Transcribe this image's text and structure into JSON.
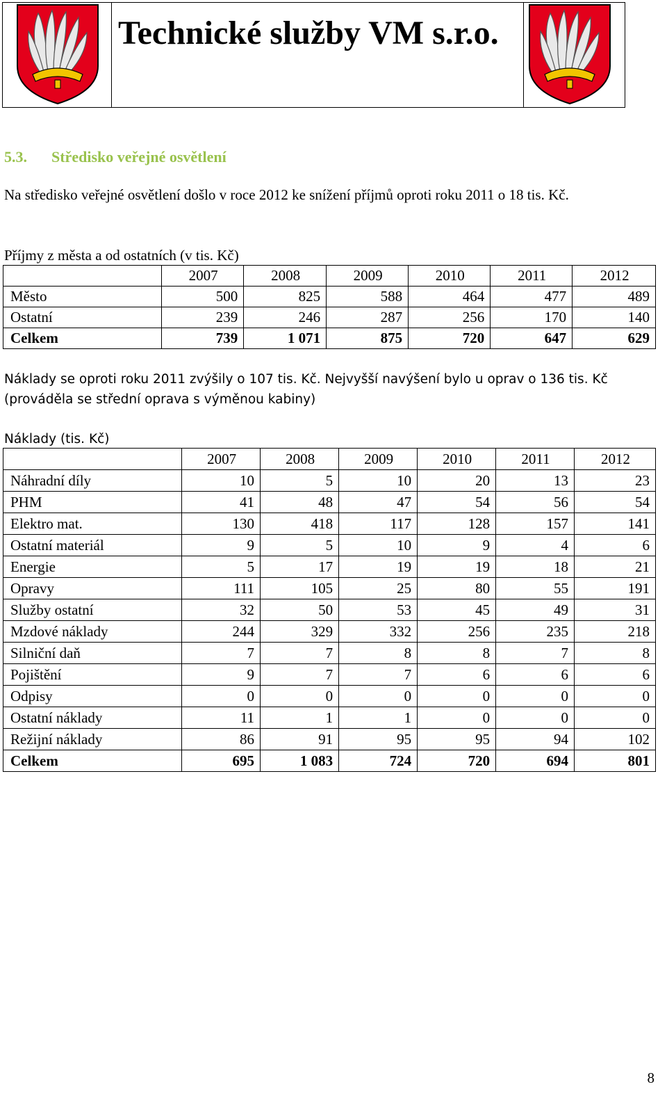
{
  "header": {
    "title": "Technické služby VM s.r.o."
  },
  "section": {
    "number": "5.3.",
    "title": "Středisko veřejné osvětlení"
  },
  "paragraphs": {
    "intro": "Na středisko veřejné osvětlení došlo v roce 2012 ke snížení příjmů oproti roku 2011 o 18 tis. Kč.",
    "income_caption": "Příjmy z města a od ostatních (v tis. Kč)",
    "costs_text": "Náklady se oproti roku 2011 zvýšily o 107 tis. Kč. Nejvyšší navýšení bylo u oprav o 136 tis. Kč (prováděla se střední oprava s výměnou kabiny)",
    "costs_caption": "Náklady (tis. Kč)"
  },
  "income_table": {
    "years": [
      "2007",
      "2008",
      "2009",
      "2010",
      "2011",
      "2012"
    ],
    "rows": [
      {
        "label": "Město",
        "values": [
          "500",
          "825",
          "588",
          "464",
          "477",
          "489"
        ]
      },
      {
        "label": "Ostatní",
        "values": [
          "239",
          "246",
          "287",
          "256",
          "170",
          "140"
        ]
      },
      {
        "label": "Celkem",
        "values": [
          "739",
          "1 071",
          "875",
          "720",
          "647",
          "629"
        ],
        "bold": true
      }
    ]
  },
  "costs_table": {
    "years": [
      "2007",
      "2008",
      "2009",
      "2010",
      "2011",
      "2012"
    ],
    "rows": [
      {
        "label": "Náhradní díly",
        "values": [
          "10",
          "5",
          "10",
          "20",
          "13",
          "23"
        ]
      },
      {
        "label": "PHM",
        "values": [
          "41",
          "48",
          "47",
          "54",
          "56",
          "54"
        ]
      },
      {
        "label": "Elektro mat.",
        "values": [
          "130",
          "418",
          "117",
          "128",
          "157",
          "141"
        ]
      },
      {
        "label": "Ostatní materiál",
        "values": [
          "9",
          "5",
          "10",
          "9",
          "4",
          "6"
        ]
      },
      {
        "label": "Energie",
        "values": [
          "5",
          "17",
          "19",
          "19",
          "18",
          "21"
        ]
      },
      {
        "label": "Opravy",
        "values": [
          "111",
          "105",
          "25",
          "80",
          "55",
          "191"
        ]
      },
      {
        "label": "Služby ostatní",
        "values": [
          "32",
          "50",
          "53",
          "45",
          "49",
          "31"
        ]
      },
      {
        "label": "Mzdové náklady",
        "values": [
          "244",
          "329",
          "332",
          "256",
          "235",
          "218"
        ]
      },
      {
        "label": "Silniční daň",
        "values": [
          "7",
          "7",
          "8",
          "8",
          "7",
          "8"
        ]
      },
      {
        "label": "Pojištění",
        "values": [
          "9",
          "7",
          "7",
          "6",
          "6",
          "6"
        ]
      },
      {
        "label": "Odpisy",
        "values": [
          "0",
          "0",
          "0",
          "0",
          "0",
          "0"
        ]
      },
      {
        "label": "Ostatní náklady",
        "values": [
          "11",
          "1",
          "1",
          "0",
          "0",
          "0"
        ]
      },
      {
        "label": "Režijní náklady",
        "values": [
          "86",
          "91",
          "95",
          "95",
          "94",
          "102"
        ]
      },
      {
        "label": "Celkem",
        "values": [
          "695",
          "1 083",
          "724",
          "720",
          "694",
          "801"
        ],
        "bold": true
      }
    ]
  },
  "page_number": "8",
  "colors": {
    "heading": "#99c24d",
    "crest_red": "#e3001b",
    "crest_gold": "#f2c400",
    "crest_feather": "#e9e9e9"
  }
}
